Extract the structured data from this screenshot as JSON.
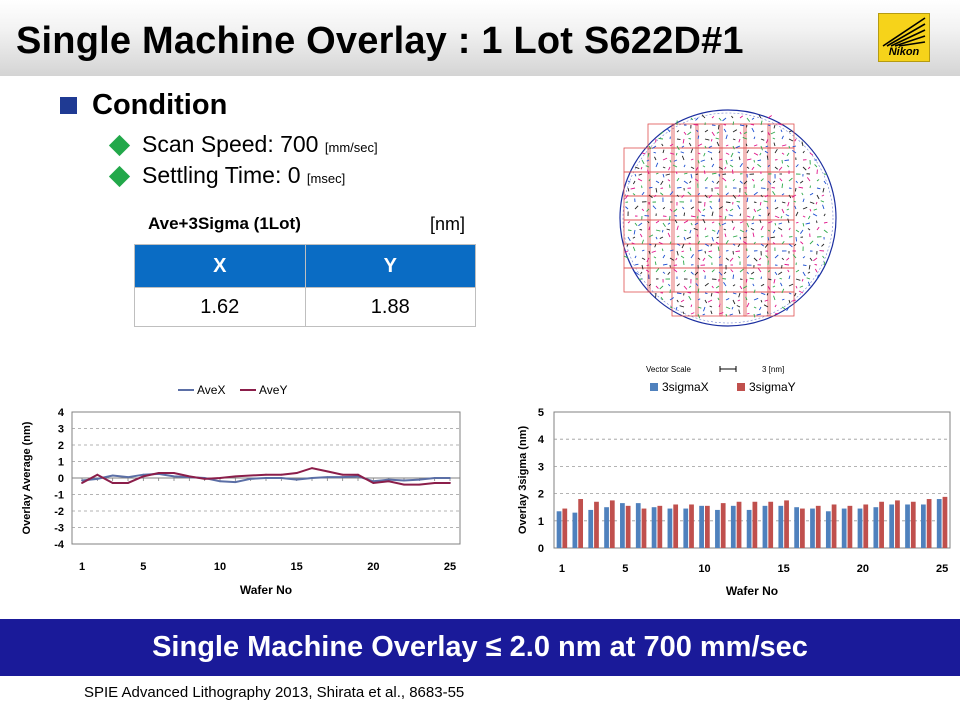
{
  "header": {
    "title": "Single Machine Overlay : 1 Lot  S622D#1",
    "logo_text": "Nikon"
  },
  "condition": {
    "heading": "Condition",
    "items": [
      {
        "label": "Scan Speed: 700 ",
        "unit": "[mm/sec]"
      },
      {
        "label": "Settling Time: 0 ",
        "unit": "[msec]"
      }
    ]
  },
  "result_table": {
    "title": "Ave+3Sigma (1Lot)",
    "unit": "[nm]",
    "headers": [
      "X",
      "Y"
    ],
    "values": [
      "1.62",
      "1.88"
    ]
  },
  "wafer_map": {
    "vector_scale_label": "Vector Scale",
    "vector_scale_value": "3 [nm]"
  },
  "chart_data": [
    {
      "type": "line",
      "title": "",
      "xlabel": "Wafer No",
      "ylabel": "Overlay Average (nm)",
      "xlim": [
        1,
        25
      ],
      "ylim": [
        -4,
        4
      ],
      "xticks": [
        1,
        5,
        10,
        15,
        20,
        25
      ],
      "yticks": [
        4,
        3,
        2,
        1,
        0,
        -1,
        -2,
        -3,
        -4
      ],
      "legend": "top",
      "x": [
        1,
        2,
        3,
        4,
        5,
        6,
        7,
        8,
        9,
        10,
        11,
        12,
        13,
        14,
        15,
        16,
        17,
        18,
        19,
        20,
        21,
        22,
        23,
        24,
        25
      ],
      "series": [
        {
          "name": "AveX",
          "color": "#5b6fa6",
          "values": [
            -0.15,
            -0.05,
            0.15,
            0.05,
            0.2,
            0.25,
            0.1,
            0.05,
            0.0,
            -0.2,
            -0.25,
            -0.05,
            0.0,
            0.0,
            -0.1,
            0.0,
            0.05,
            0.05,
            0.1,
            -0.2,
            -0.1,
            -0.15,
            -0.1,
            0.0,
            0.0
          ]
        },
        {
          "name": "AveY",
          "color": "#8b1e4a",
          "values": [
            -0.3,
            0.2,
            -0.3,
            -0.3,
            0.1,
            0.3,
            0.3,
            0.1,
            -0.05,
            0.0,
            0.1,
            0.15,
            0.2,
            0.2,
            0.3,
            0.6,
            0.4,
            0.2,
            0.2,
            -0.3,
            -0.2,
            -0.4,
            -0.4,
            -0.3,
            -0.3
          ]
        }
      ]
    },
    {
      "type": "bar",
      "title": "",
      "xlabel": "Wafer No",
      "ylabel": "Overlay 3sigma (nm)",
      "ylim": [
        0,
        5
      ],
      "yticks": [
        5,
        4,
        3,
        2,
        1,
        0
      ],
      "xtick_labels": [
        "1",
        "5",
        "10",
        "15",
        "20",
        "25"
      ],
      "xtick_values": [
        1,
        5,
        10,
        15,
        20,
        25
      ],
      "legend": "top",
      "x": [
        1,
        2,
        3,
        4,
        5,
        6,
        7,
        8,
        9,
        10,
        11,
        12,
        13,
        14,
        15,
        16,
        17,
        18,
        19,
        20,
        21,
        22,
        23,
        24,
        25
      ],
      "series": [
        {
          "name": "3sigmaX",
          "color": "#4f81bd",
          "values": [
            1.35,
            1.3,
            1.4,
            1.5,
            1.65,
            1.65,
            1.5,
            1.45,
            1.45,
            1.55,
            1.4,
            1.55,
            1.4,
            1.55,
            1.55,
            1.5,
            1.45,
            1.35,
            1.45,
            1.45,
            1.5,
            1.6,
            1.6,
            1.6,
            1.8
          ]
        },
        {
          "name": "3sigmaY",
          "color": "#c0504d",
          "values": [
            1.45,
            1.8,
            1.7,
            1.75,
            1.55,
            1.45,
            1.55,
            1.6,
            1.6,
            1.55,
            1.65,
            1.7,
            1.7,
            1.7,
            1.75,
            1.45,
            1.55,
            1.6,
            1.55,
            1.6,
            1.7,
            1.75,
            1.7,
            1.8,
            1.88
          ]
        }
      ]
    }
  ],
  "footer": {
    "summary": "Single Machine Overlay ≤ 2.0 nm at 700 mm/sec",
    "citation": "SPIE Advanced Lithography 2013, Shirata et al., 8683-55"
  }
}
